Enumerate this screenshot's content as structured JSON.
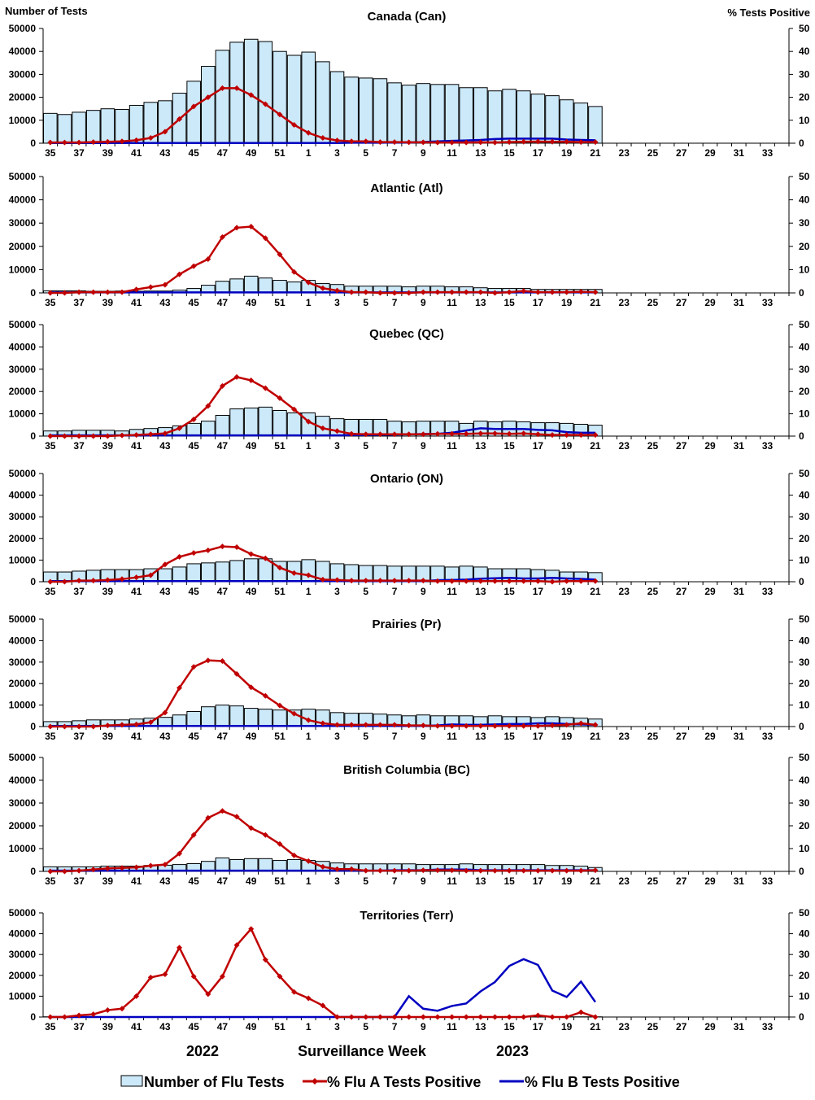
{
  "chart_data": {
    "type": "bar+line",
    "left_axis_label": "Number of Tests",
    "right_axis_label": "% Tests Positive",
    "left_ylim": [
      0,
      50000
    ],
    "right_ylim": [
      0,
      50
    ],
    "left_ticks": [
      "0",
      "10000",
      "20000",
      "30000",
      "40000",
      "50000"
    ],
    "right_ticks": [
      "0",
      "10",
      "20",
      "30",
      "40",
      "50"
    ],
    "weeks": [
      35,
      36,
      37,
      38,
      39,
      40,
      41,
      42,
      43,
      44,
      45,
      46,
      47,
      48,
      49,
      50,
      51,
      52,
      1,
      2,
      3,
      4,
      5,
      6,
      7,
      8,
      9,
      10,
      11,
      12,
      13,
      14,
      15,
      16,
      17,
      18,
      19,
      20,
      21,
      22,
      23,
      24,
      25,
      26,
      27,
      28,
      29,
      30,
      31,
      32,
      33,
      34
    ],
    "x_tick_labels": [
      "35",
      "37",
      "39",
      "41",
      "43",
      "45",
      "47",
      "49",
      "51",
      "1",
      "3",
      "5",
      "7",
      "9",
      "11",
      "13",
      "15",
      "17",
      "19",
      "21",
      "23",
      "25",
      "27",
      "29",
      "31",
      "33"
    ],
    "xlabel": "Surveillance Week",
    "year_labels": [
      "2022",
      "2023"
    ],
    "legend": {
      "bars": "Number of Flu Tests",
      "flu_a": "% Flu A Tests Positive",
      "flu_b": "% Flu B Tests Positive",
      "placement": "bottom"
    },
    "colors": {
      "bar_fill": "#cce9f9",
      "bar_stroke": "#000000",
      "flu_a": "#c00000",
      "flu_b": "#0000c0"
    },
    "panels": [
      {
        "title": "Canada (Can)",
        "tests": [
          13000,
          12500,
          13500,
          14300,
          15000,
          14700,
          16500,
          17800,
          18500,
          21800,
          27000,
          33500,
          40500,
          44000,
          45300,
          44300,
          40000,
          38300,
          39700,
          35500,
          31200,
          28800,
          28400,
          28100,
          26300,
          25300,
          26000,
          25600,
          25600,
          24200,
          24200,
          22800,
          23500,
          22800,
          21400,
          20700,
          18900,
          17500,
          16000
        ],
        "flu_a": [
          0.3,
          0.3,
          0.3,
          0.5,
          0.6,
          0.8,
          1.3,
          2.3,
          5,
          10.5,
          16,
          20,
          24,
          24,
          21,
          17,
          12.5,
          8,
          4.5,
          2.3,
          1.2,
          0.8,
          0.8,
          0.5,
          0.5,
          0.4,
          0.4,
          0.3,
          0.3,
          0.3,
          0.4,
          0.3,
          0.5,
          0.6,
          0.7,
          0.6,
          0.6,
          0.5,
          0.5
        ],
        "flu_b": [
          0.1,
          0.1,
          0.1,
          0.1,
          0.1,
          0.1,
          0.1,
          0.1,
          0.1,
          0.1,
          0.1,
          0.1,
          0.1,
          0.1,
          0.1,
          0.1,
          0.1,
          0.1,
          0.1,
          0.1,
          0.1,
          0.2,
          0.2,
          0.2,
          0.3,
          0.3,
          0.5,
          0.8,
          1,
          1.2,
          1.4,
          1.8,
          2,
          2,
          2,
          2,
          1.6,
          1.4,
          1.3
        ]
      },
      {
        "title": "Atlantic (Atl)",
        "tests": [
          900,
          900,
          900,
          700,
          700,
          800,
          700,
          800,
          800,
          1200,
          1900,
          3300,
          5000,
          6000,
          7200,
          6400,
          5400,
          4700,
          5400,
          4000,
          3600,
          2900,
          2900,
          2900,
          2900,
          2600,
          2900,
          2900,
          2600,
          2600,
          2200,
          1900,
          1900,
          1900,
          1500,
          1500,
          1500,
          1500,
          1500
        ],
        "flu_a": [
          0,
          0,
          0.3,
          0.3,
          0.3,
          0.3,
          1.5,
          2.5,
          3.5,
          8,
          11.5,
          14.5,
          24,
          28,
          28.5,
          23.5,
          16.5,
          9,
          4.5,
          2,
          1,
          0.3,
          0.3,
          0,
          0,
          0,
          0.3,
          0.3,
          0.3,
          0.3,
          0.3,
          0,
          0.3,
          0.8,
          0.3,
          0.3,
          0.3,
          0.5,
          0.3
        ],
        "flu_b": [
          0.2,
          0.2,
          0.2,
          0.2,
          0.2,
          0.2,
          0.2,
          0.2,
          0.2,
          0.2,
          0.2,
          0.2,
          0.2,
          0.2,
          0.2,
          0.2,
          0.2,
          0.2,
          0.2,
          0.2,
          0.2,
          0.2,
          0.2,
          0.2,
          0.2,
          0.2,
          0.2,
          0.2,
          0.2,
          0.2,
          0.2,
          0.2,
          0.2,
          0.2,
          0.2,
          0.2,
          0.2,
          0.2,
          0.2
        ]
      },
      {
        "title": "Quebec (QC)",
        "tests": [
          2300,
          2300,
          2600,
          2600,
          2600,
          2300,
          3000,
          3400,
          3800,
          4600,
          5700,
          6700,
          9300,
          12200,
          12600,
          13000,
          11500,
          10400,
          10400,
          8900,
          7800,
          7500,
          7500,
          7500,
          6700,
          6400,
          6700,
          6700,
          6700,
          5700,
          6700,
          6400,
          6700,
          6400,
          6000,
          6000,
          5700,
          5300,
          4900
        ],
        "flu_a": [
          0,
          0,
          0,
          0,
          0,
          0.3,
          0.5,
          0.8,
          1.2,
          3.5,
          7.5,
          13.5,
          22.5,
          26.5,
          25,
          21.5,
          17,
          12,
          6.5,
          3.5,
          2.3,
          1,
          0.8,
          0.8,
          0.8,
          0.8,
          0.8,
          1,
          1,
          1,
          1.2,
          1.2,
          1,
          1.2,
          0.8,
          0.5,
          0.5,
          0.5,
          0.5
        ],
        "flu_b": [
          0.3,
          0.3,
          0.3,
          0.3,
          0.3,
          0.3,
          0.3,
          0.3,
          0.3,
          0.3,
          0.3,
          0.3,
          0.3,
          0.3,
          0.3,
          0.3,
          0.3,
          0.3,
          0.3,
          0.3,
          0.3,
          0.4,
          0.5,
          0.6,
          0.7,
          0.8,
          0.9,
          1,
          1.5,
          2.5,
          3.5,
          3.2,
          3.2,
          3.2,
          2.8,
          2.6,
          1.8,
          1.5,
          1.5
        ]
      },
      {
        "title": "Ontario (ON)",
        "tests": [
          4500,
          4500,
          4900,
          5300,
          5600,
          5600,
          5600,
          6000,
          6000,
          6800,
          8300,
          8700,
          9100,
          9800,
          10600,
          10600,
          9400,
          9400,
          10200,
          9400,
          8300,
          7900,
          7500,
          7500,
          7200,
          7200,
          7200,
          7200,
          6800,
          7200,
          6800,
          6000,
          6000,
          6000,
          5600,
          5300,
          4500,
          4500,
          4200
        ],
        "flu_a": [
          0,
          0,
          0.5,
          0.5,
          0.8,
          1.2,
          2,
          3,
          8,
          11.5,
          13.3,
          14.5,
          16.3,
          16,
          12.8,
          10.8,
          6.5,
          4,
          3,
          1,
          0.8,
          0.5,
          0.5,
          0.5,
          0.5,
          0.5,
          0.5,
          0.3,
          0.3,
          0.3,
          0.3,
          0.3,
          0.3,
          0.3,
          0.3,
          0,
          0.3,
          0.3,
          0.3
        ],
        "flu_b": [
          0.3,
          0.3,
          0.3,
          0.3,
          0.3,
          0.3,
          0.3,
          0.3,
          0.3,
          0.3,
          0.3,
          0.3,
          0.3,
          0.3,
          0.3,
          0.3,
          0.3,
          0.3,
          0.3,
          0.3,
          0.3,
          0.3,
          0.3,
          0.3,
          0.3,
          0.3,
          0.3,
          0.7,
          0.8,
          1,
          1.4,
          1.6,
          1.8,
          1.5,
          1.5,
          1.8,
          1.5,
          1.3,
          1
        ]
      },
      {
        "title": "Prairies (Pr)",
        "tests": [
          2300,
          2300,
          2700,
          3100,
          3100,
          3100,
          3500,
          3900,
          4300,
          5400,
          7000,
          9200,
          10000,
          9600,
          8500,
          8100,
          7700,
          7700,
          8100,
          7700,
          6500,
          6200,
          6200,
          5800,
          5400,
          5000,
          5400,
          5000,
          5000,
          5000,
          4600,
          5000,
          4600,
          4600,
          4200,
          4600,
          4200,
          3900,
          3500
        ],
        "flu_a": [
          0,
          0,
          0,
          0,
          0.5,
          0.8,
          1,
          2,
          6.5,
          18,
          27.8,
          30.8,
          30.5,
          24.5,
          18.3,
          14.3,
          9.8,
          6,
          3,
          1.5,
          0.8,
          0.8,
          0.8,
          0.8,
          0.8,
          0.5,
          0.5,
          0.3,
          0.3,
          0.3,
          0.3,
          0.3,
          0.3,
          0.3,
          0.3,
          0.5,
          0.8,
          1.5,
          0.8
        ],
        "flu_b": [
          0.3,
          0.3,
          0.3,
          0.3,
          0.3,
          0.3,
          0.3,
          0.3,
          0.3,
          0.3,
          0.3,
          0.3,
          0.3,
          0.3,
          0.3,
          0.3,
          0.3,
          0.3,
          0.3,
          0.3,
          0.3,
          0.3,
          0.3,
          0.3,
          0.3,
          0.3,
          0.3,
          0.5,
          1,
          0.8,
          0.8,
          1,
          1.2,
          1.2,
          1.5,
          1.5,
          1.2,
          1,
          0.8
        ]
      },
      {
        "title": "British Columbia (BC)",
        "tests": [
          2000,
          2000,
          2000,
          2000,
          2300,
          2300,
          2300,
          2600,
          2700,
          3000,
          3400,
          4400,
          5900,
          5200,
          5600,
          5600,
          4800,
          5200,
          4800,
          4400,
          3700,
          3300,
          3300,
          3300,
          3300,
          3300,
          3000,
          3000,
          3000,
          3300,
          3000,
          3000,
          3000,
          3000,
          3000,
          2600,
          2600,
          2300,
          1700
        ],
        "flu_a": [
          0,
          0,
          0.3,
          0.8,
          1.3,
          1.5,
          1.8,
          2.5,
          3,
          7.8,
          16,
          23.5,
          26.5,
          24,
          19,
          16,
          12,
          7,
          4.5,
          2,
          1,
          1,
          0.3,
          0.3,
          0.3,
          0.3,
          0.5,
          0.5,
          0.5,
          0.3,
          0.3,
          0.3,
          0.3,
          0.3,
          0.3,
          0.3,
          0.3,
          0.3,
          0.5
        ],
        "flu_b": [
          0.3,
          0.3,
          0.3,
          0.3,
          0.3,
          0.3,
          0.3,
          0.3,
          0.3,
          0.3,
          0.3,
          0.3,
          0.3,
          0.3,
          0.3,
          0.3,
          0.3,
          0.3,
          0.3,
          0.3,
          0.3,
          0.3,
          0.3,
          0.3,
          0.5,
          0.5,
          0.5,
          0.8,
          0.8,
          0.8,
          0.5,
          0.5,
          0.5,
          0.5,
          0.5,
          0.5,
          0.5,
          0.5,
          0.5
        ]
      },
      {
        "title": "Territories (Terr)",
        "tests": [
          100,
          100,
          100,
          100,
          100,
          100,
          100,
          100,
          100,
          100,
          100,
          100,
          100,
          100,
          100,
          100,
          100,
          100,
          100,
          100,
          100,
          100,
          100,
          100,
          100,
          100,
          100,
          100,
          100,
          100,
          100,
          100,
          100,
          100,
          100,
          100,
          100,
          100,
          100
        ],
        "flu_a": [
          0,
          0,
          0.8,
          1.3,
          3.3,
          4,
          10,
          19,
          20.5,
          33.3,
          19.5,
          11,
          19.5,
          34.5,
          42.3,
          27.5,
          19.5,
          12,
          9,
          5.5,
          0,
          0,
          0,
          0,
          0,
          0,
          0,
          0,
          0,
          0,
          0,
          0,
          0,
          0,
          0.8,
          0,
          0,
          2.3,
          0
        ],
        "flu_b": [
          0,
          0,
          0,
          0,
          0,
          0,
          0,
          0,
          0,
          0,
          0,
          0,
          0,
          0,
          0,
          0,
          0,
          0,
          0,
          0,
          0,
          0,
          0,
          0,
          0,
          10,
          4,
          3,
          5.3,
          6.5,
          12.3,
          16.8,
          24.5,
          27.8,
          25,
          12.7,
          9.6,
          17,
          7.2
        ]
      }
    ]
  }
}
